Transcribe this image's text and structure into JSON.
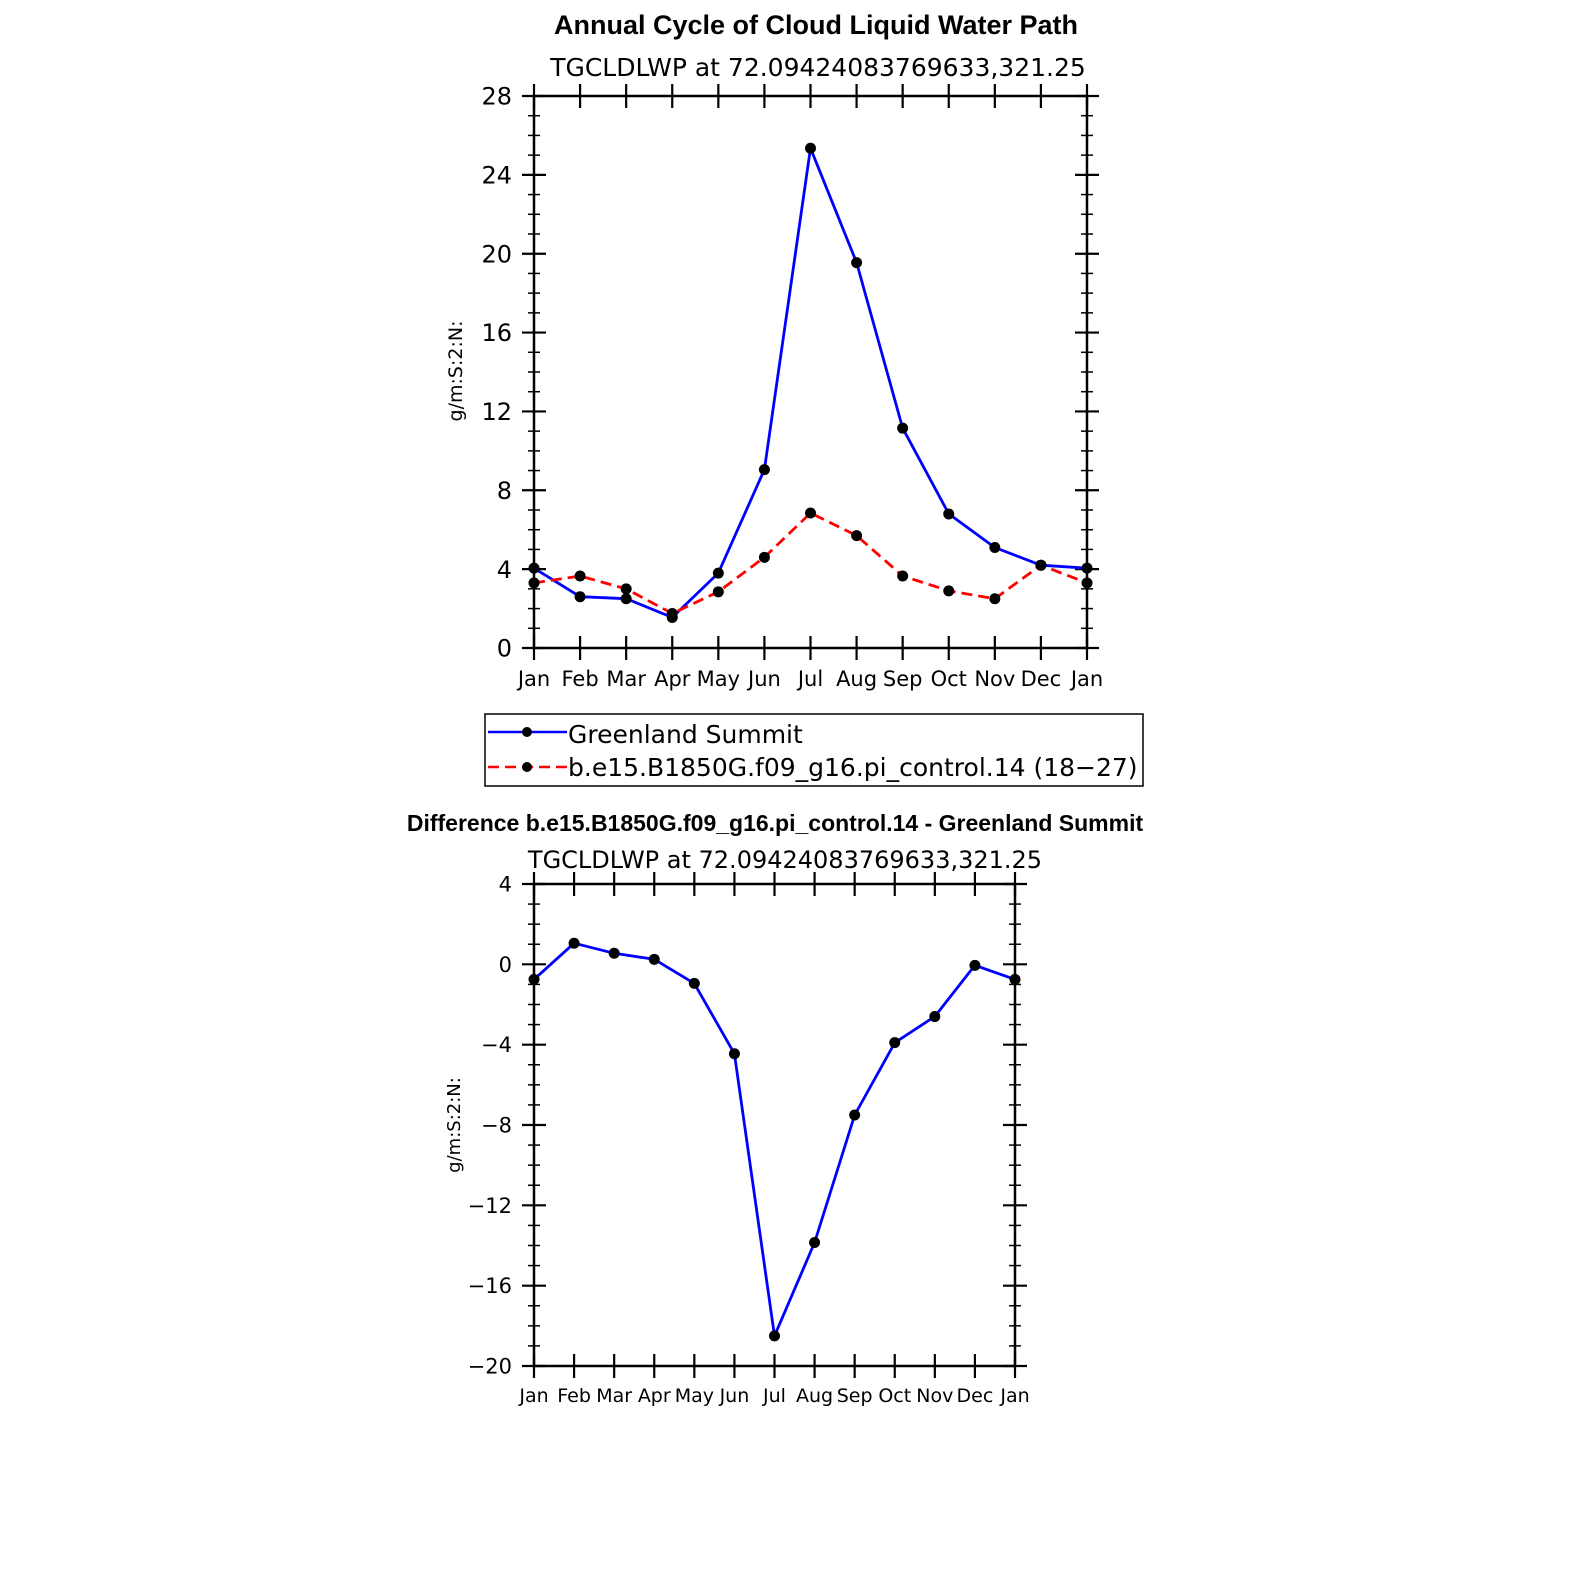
{
  "chart_data": [
    {
      "type": "line",
      "title": "Annual Cycle of Cloud Liquid Water Path",
      "subtitle": "TGCLDLWP at 72.09424083769633,321.25",
      "xlabel": "",
      "ylabel": "g/m:S:2:N:",
      "categories": [
        "Jan",
        "Feb",
        "Mar",
        "Apr",
        "May",
        "Jun",
        "Jul",
        "Aug",
        "Sep",
        "Oct",
        "Nov",
        "Dec",
        "Jan"
      ],
      "ylim": [
        0,
        28
      ],
      "yticks": [
        0,
        4,
        8,
        12,
        16,
        20,
        24,
        28
      ],
      "ytick_labels": [
        "0",
        "4",
        "8",
        "12",
        "16",
        "20",
        "24",
        "28"
      ],
      "legend_position": "bottom",
      "series": [
        {
          "name": "Greenland Summit",
          "color": "#0000ff",
          "dash": "solid",
          "values": [
            4.05,
            2.6,
            2.5,
            1.55,
            3.8,
            9.05,
            25.35,
            19.55,
            11.15,
            6.8,
            5.1,
            4.2,
            4.05
          ]
        },
        {
          "name": "b.e15.B1850G.f09_g16.pi_control.14 (18−27)",
          "color": "#ff0000",
          "dash": "dashed",
          "values": [
            3.3,
            3.65,
            3.0,
            1.75,
            2.85,
            4.6,
            6.85,
            5.7,
            3.65,
            2.9,
            2.5,
            4.2,
            3.3
          ]
        }
      ]
    },
    {
      "type": "line",
      "title": "Difference b.e15.B1850G.f09_g16.pi_control.14 - Greenland Summit",
      "subtitle": "TGCLDLWP at 72.09424083769633,321.25",
      "xlabel": "",
      "ylabel": "g/m:S:2:N:",
      "categories": [
        "Jan",
        "Feb",
        "Mar",
        "Apr",
        "May",
        "Jun",
        "Jul",
        "Aug",
        "Sep",
        "Oct",
        "Nov",
        "Dec",
        "Jan"
      ],
      "ylim": [
        -20,
        4
      ],
      "yticks": [
        -20,
        -16,
        -12,
        -8,
        -4,
        0,
        4
      ],
      "ytick_labels": [
        "−20",
        "−16",
        "−12",
        "−8",
        "−4",
        "0",
        "4"
      ],
      "series": [
        {
          "name": "Difference",
          "color": "#0000ff",
          "dash": "solid",
          "values": [
            -0.75,
            1.05,
            0.55,
            0.25,
            -0.95,
            -4.45,
            -18.5,
            -13.85,
            -7.5,
            -3.9,
            -2.6,
            -0.05,
            -0.75
          ]
        }
      ]
    }
  ]
}
